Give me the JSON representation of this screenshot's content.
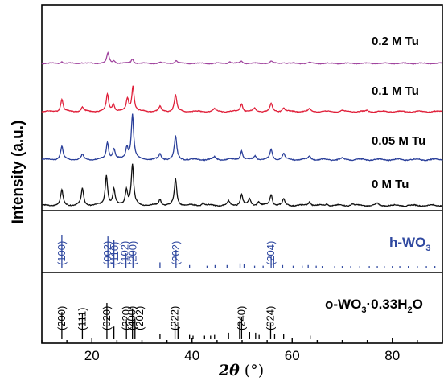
{
  "chart_data": {
    "type": "line",
    "xlabel_symbol": "2θ",
    "xlabel_unit": " (°)",
    "ylabel": "Intensity (a.u.)",
    "xlim": [
      10,
      90
    ],
    "xticks": [
      20,
      40,
      60,
      80
    ],
    "series": [
      {
        "name": "0.2 M Tu",
        "color": "#a0449e",
        "baseline": 0.0,
        "peaks": [
          [
            14,
            0.5
          ],
          [
            18,
            0.2
          ],
          [
            23.2,
            2.8
          ],
          [
            24.4,
            0.7
          ],
          [
            28.1,
            1.2
          ],
          [
            33.6,
            0.3
          ],
          [
            36.8,
            0.8
          ],
          [
            47.5,
            0.5
          ],
          [
            49.9,
            0.6
          ],
          [
            55.8,
            0.55
          ],
          [
            58.3,
            0.3
          ],
          [
            63.5,
            0.2
          ]
        ]
      },
      {
        "name": "0.1 M Tu",
        "color": "#e0203a",
        "baseline": 0.0,
        "peaks": [
          [
            14,
            2.9
          ],
          [
            18.1,
            1.0
          ],
          [
            23.1,
            3.9
          ],
          [
            24.3,
            1.7
          ],
          [
            27.1,
            2.9
          ],
          [
            28.2,
            5.8
          ],
          [
            33.6,
            1.1
          ],
          [
            36.7,
            3.9
          ],
          [
            44.5,
            0.6
          ],
          [
            49.9,
            1.9
          ],
          [
            52.5,
            0.7
          ],
          [
            55.8,
            1.8
          ],
          [
            58.3,
            0.9
          ],
          [
            63.5,
            0.6
          ],
          [
            70,
            0.25
          ],
          [
            75,
            0.25
          ]
        ]
      },
      {
        "name": "0.05 M Tu",
        "color": "#2a3f9a",
        "baseline": 0.0,
        "peaks": [
          [
            14,
            2.5
          ],
          [
            18.1,
            0.9
          ],
          [
            23.1,
            3.2
          ],
          [
            24.4,
            2.0
          ],
          [
            27,
            2.2
          ],
          [
            28.1,
            8.5
          ],
          [
            33.6,
            1.0
          ],
          [
            36.7,
            4.4
          ],
          [
            44.5,
            0.5
          ],
          [
            49.9,
            1.7
          ],
          [
            52.6,
            0.7
          ],
          [
            55.8,
            1.9
          ],
          [
            58.3,
            1.1
          ],
          [
            63.5,
            0.7
          ],
          [
            70,
            0.25
          ]
        ]
      },
      {
        "name": "0 M Tu",
        "color": "#111111",
        "baseline": 0.0,
        "peaks": [
          [
            14,
            3.0
          ],
          [
            18.1,
            3.3
          ],
          [
            22.9,
            6.0
          ],
          [
            24.4,
            3.0
          ],
          [
            26.9,
            3.0
          ],
          [
            28.1,
            8.0
          ],
          [
            33.6,
            1.2
          ],
          [
            36.7,
            5.2
          ],
          [
            42.2,
            0.6
          ],
          [
            47.3,
            0.8
          ],
          [
            49.9,
            2.2
          ],
          [
            51.5,
            1.2
          ],
          [
            53.3,
            0.8
          ],
          [
            55.8,
            2.2
          ],
          [
            58.3,
            1.2
          ],
          [
            63.5,
            0.8
          ],
          [
            67,
            0.35
          ],
          [
            72,
            0.35
          ],
          [
            77,
            0.35
          ]
        ]
      }
    ],
    "references": [
      {
        "name_main": "h-WO",
        "name_sub": "3",
        "color": "#3049a0",
        "hkl_labels": [
          {
            "text": "(100)",
            "x": 14.0
          },
          {
            "text": "(002)",
            "x": 23.2
          },
          {
            "text": "(110)",
            "x": 24.6
          },
          {
            "text": "(102)",
            "x": 26.6
          },
          {
            "text": "(200)",
            "x": 28.2
          },
          {
            "text": "(202)",
            "x": 36.8
          },
          {
            "text": "(204)",
            "x": 55.8
          }
        ],
        "lines": [
          [
            14.0,
            1.0
          ],
          [
            23.2,
            0.95
          ],
          [
            24.4,
            0.85
          ],
          [
            26.8,
            0.45
          ],
          [
            28.2,
            0.5
          ],
          [
            33.6,
            0.18
          ],
          [
            36.8,
            0.55
          ],
          [
            39.5,
            0.1
          ],
          [
            43.0,
            0.08
          ],
          [
            44.6,
            0.1
          ],
          [
            47.0,
            0.1
          ],
          [
            49.6,
            0.15
          ],
          [
            50.4,
            0.12
          ],
          [
            52.5,
            0.08
          ],
          [
            54.2,
            0.08
          ],
          [
            55.8,
            0.4
          ],
          [
            56.3,
            0.35
          ],
          [
            58.1,
            0.1
          ],
          [
            60.2,
            0.08
          ],
          [
            62.0,
            0.08
          ],
          [
            63.2,
            0.1
          ],
          [
            64.8,
            0.08
          ],
          [
            66.0,
            0.07
          ],
          [
            68.5,
            0.07
          ],
          [
            70.0,
            0.07
          ],
          [
            71.7,
            0.07
          ],
          [
            73.5,
            0.07
          ],
          [
            75.4,
            0.07
          ],
          [
            77.0,
            0.07
          ],
          [
            78.4,
            0.07
          ],
          [
            80.0,
            0.07
          ],
          [
            81.5,
            0.07
          ],
          [
            83.2,
            0.07
          ],
          [
            85.0,
            0.07
          ],
          [
            86.8,
            0.07
          ],
          [
            88.5,
            0.07
          ]
        ]
      },
      {
        "name_main": "o-WO",
        "name_sub1": "3",
        "name_mid": "·0.33H",
        "name_sub2": "2",
        "name_end": "O",
        "color": "#000000",
        "hkl_labels": [
          {
            "text": "(200)",
            "x": 14.0
          },
          {
            "text": "(111)",
            "x": 18.1
          },
          {
            "text": "(020)",
            "x": 23.0
          },
          {
            "text": "(220)",
            "x": 26.9
          },
          {
            "text": "(400)",
            "x": 28.1
          },
          {
            "text": "(202)",
            "x": 29.6
          },
          {
            "text": "(222)",
            "x": 36.6
          },
          {
            "text": "(240)",
            "x": 49.9
          },
          {
            "text": "(024)",
            "x": 55.7
          }
        ],
        "lines": [
          [
            14.0,
            0.75
          ],
          [
            18.1,
            0.7
          ],
          [
            23.0,
            1.0
          ],
          [
            24.4,
            0.35
          ],
          [
            26.9,
            0.55
          ],
          [
            28.1,
            0.85
          ],
          [
            28.6,
            0.55
          ],
          [
            33.6,
            0.15
          ],
          [
            36.6,
            0.5
          ],
          [
            37.2,
            0.35
          ],
          [
            39.5,
            0.12
          ],
          [
            40.2,
            0.1
          ],
          [
            42.5,
            0.1
          ],
          [
            43.7,
            0.1
          ],
          [
            44.5,
            0.12
          ],
          [
            47.3,
            0.18
          ],
          [
            49.5,
            0.5
          ],
          [
            49.9,
            0.6
          ],
          [
            51.5,
            0.2
          ],
          [
            52.7,
            0.18
          ],
          [
            53.4,
            0.12
          ],
          [
            55.7,
            0.45
          ],
          [
            56.5,
            0.15
          ],
          [
            58.3,
            0.15
          ],
          [
            63.6,
            0.1
          ]
        ]
      }
    ]
  }
}
